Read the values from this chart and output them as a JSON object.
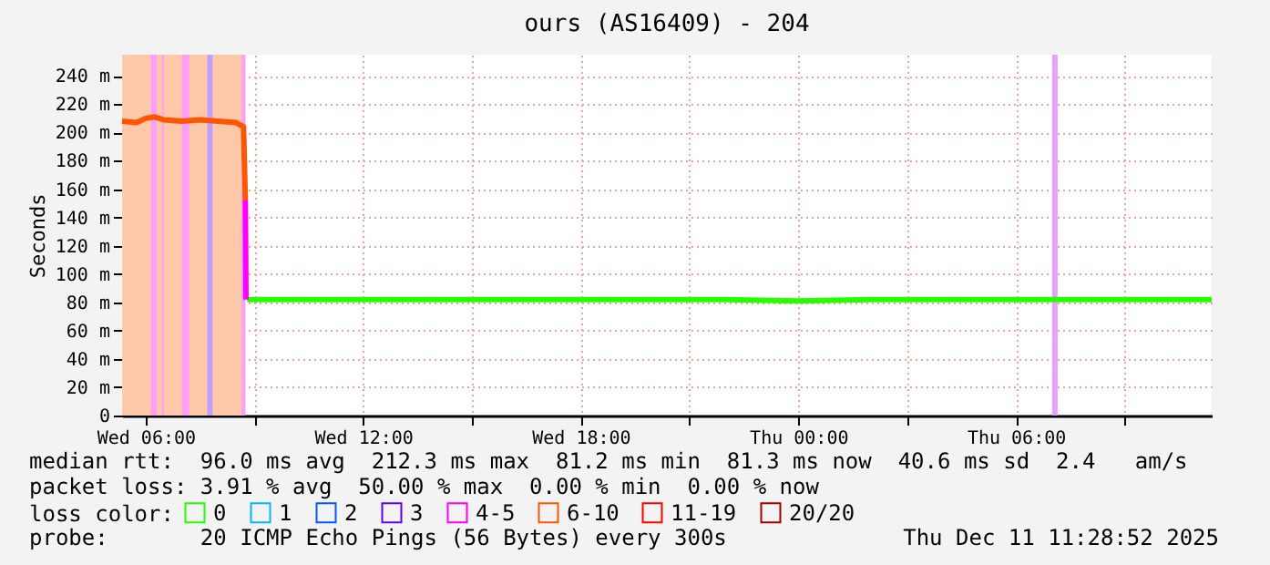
{
  "chart_data": {
    "type": "line",
    "title": "ours (AS16409) - 204",
    "ylabel": "Seconds",
    "legend_title": "loss color:",
    "legend": "bottom",
    "grid": true,
    "line_style": "solid",
    "marker": "none",
    "xlim": [
      "2025-12-10T05:21",
      "2025-12-11T11:24"
    ],
    "xticks": [
      {
        "value": "2025-12-10T06:00",
        "label": "Wed 06:00"
      },
      {
        "value": "2025-12-10T09:00",
        "label": null
      },
      {
        "value": "2025-12-10T12:00",
        "label": "Wed 12:00"
      },
      {
        "value": "2025-12-10T15:00",
        "label": null
      },
      {
        "value": "2025-12-10T18:00",
        "label": "Wed 18:00"
      },
      {
        "value": "2025-12-10T21:00",
        "label": null
      },
      {
        "value": "2025-12-11T00:00",
        "label": "Thu 00:00"
      },
      {
        "value": "2025-12-11T03:00",
        "label": null
      },
      {
        "value": "2025-12-11T06:00",
        "label": "Thu 06:00"
      },
      {
        "value": "2025-12-11T09:00",
        "label": null
      }
    ],
    "ylim": [
      0,
      255
    ],
    "yticks": [
      0,
      {
        "value": 20,
        "label": "20 m"
      },
      {
        "value": 40,
        "label": "40 m"
      },
      {
        "value": 60,
        "label": "60 m"
      },
      {
        "value": 80,
        "label": "80 m"
      },
      {
        "value": 100,
        "label": "100 m"
      },
      {
        "value": 120,
        "label": "120 m"
      },
      {
        "value": 140,
        "label": "140 m"
      },
      {
        "value": 160,
        "label": "160 m"
      },
      {
        "value": 180,
        "label": "180 m"
      },
      {
        "value": 200,
        "label": "200 m"
      },
      {
        "value": 220,
        "label": "220 m"
      },
      {
        "value": 240,
        "label": "240 m"
      }
    ],
    "bands": [
      {
        "axis": "x",
        "from": "2025-12-10T05:21",
        "to": "2025-12-10T08:45",
        "color": "#ffc8a8"
      },
      {
        "axis": "x",
        "from": "2025-12-10T06:09",
        "to": "2025-12-10T06:18",
        "color": "#ff9cff"
      },
      {
        "axis": "x",
        "from": "2025-12-10T06:27",
        "to": "2025-12-10T06:30",
        "color": "#ff9cff"
      },
      {
        "axis": "x",
        "from": "2025-12-10T07:00",
        "to": "2025-12-10T07:12",
        "color": "#ff9cff"
      },
      {
        "axis": "x",
        "from": "2025-12-10T07:42",
        "to": "2025-12-10T07:51",
        "color": "#c0a0ff"
      },
      {
        "axis": "x",
        "from": "2025-12-10T08:39",
        "to": "2025-12-10T08:45",
        "color": "#ff9cff"
      },
      {
        "axis": "x",
        "from": "2025-12-11T07:00",
        "to": "2025-12-11T07:09",
        "color": "#e8a0ff"
      }
    ],
    "series": [
      {
        "name": "0",
        "color": "#26ff00",
        "x": [
          "2025-12-10T08:48",
          "2025-12-10T10:00",
          "2025-12-10T12:00",
          "2025-12-10T14:00",
          "2025-12-10T16:00",
          "2025-12-10T18:00",
          "2025-12-10T20:00",
          "2025-12-10T22:00",
          "2025-12-11T00:00",
          "2025-12-11T02:00",
          "2025-12-11T04:00",
          "2025-12-11T06:00",
          "2025-12-11T07:00",
          "2025-12-11T09:00",
          "2025-12-11T11:00",
          "2025-12-11T11:24"
        ],
        "values": [
          82,
          82,
          82,
          82,
          82,
          82,
          82,
          82,
          81,
          82,
          82,
          82,
          82,
          82,
          82,
          82
        ]
      },
      {
        "name": "1",
        "color": "#00b8ff"
      },
      {
        "name": "2",
        "color": "#0059ff"
      },
      {
        "name": "3",
        "color": "#5e00ff"
      },
      {
        "name": "4-5",
        "color": "#ff00ff",
        "x": [
          "2025-12-10T08:45",
          "2025-12-10T08:46"
        ],
        "values": [
          152,
          82
        ]
      },
      {
        "name": "6-10",
        "color": "#ff5500",
        "x": [
          "2025-12-10T05:21",
          "2025-12-10T05:45",
          "2025-12-10T06:00",
          "2025-12-10T06:15",
          "2025-12-10T06:30",
          "2025-12-10T07:00",
          "2025-12-10T07:30",
          "2025-12-10T08:00",
          "2025-12-10T08:30",
          "2025-12-10T08:42",
          "2025-12-10T08:45"
        ],
        "values": [
          208,
          207,
          210,
          211,
          209,
          208,
          209,
          208,
          207,
          204,
          152
        ]
      },
      {
        "name": "11-19",
        "color": "#ff0000"
      },
      {
        "name": "20/20",
        "color": "#a10000"
      }
    ],
    "annotations": [
      "median rtt:  96.0 ms avg  212.3 ms max  81.2 ms min  81.3 ms now  40.6 ms sd  2.4   am/s",
      "packet loss: 3.91 % avg  50.00 % max  0.00 % min  0.00 % now",
      "probe:       20 ICMP Echo Pings (56 Bytes) every 300s",
      "Thu Dec 11 11:28:52 2025"
    ]
  }
}
